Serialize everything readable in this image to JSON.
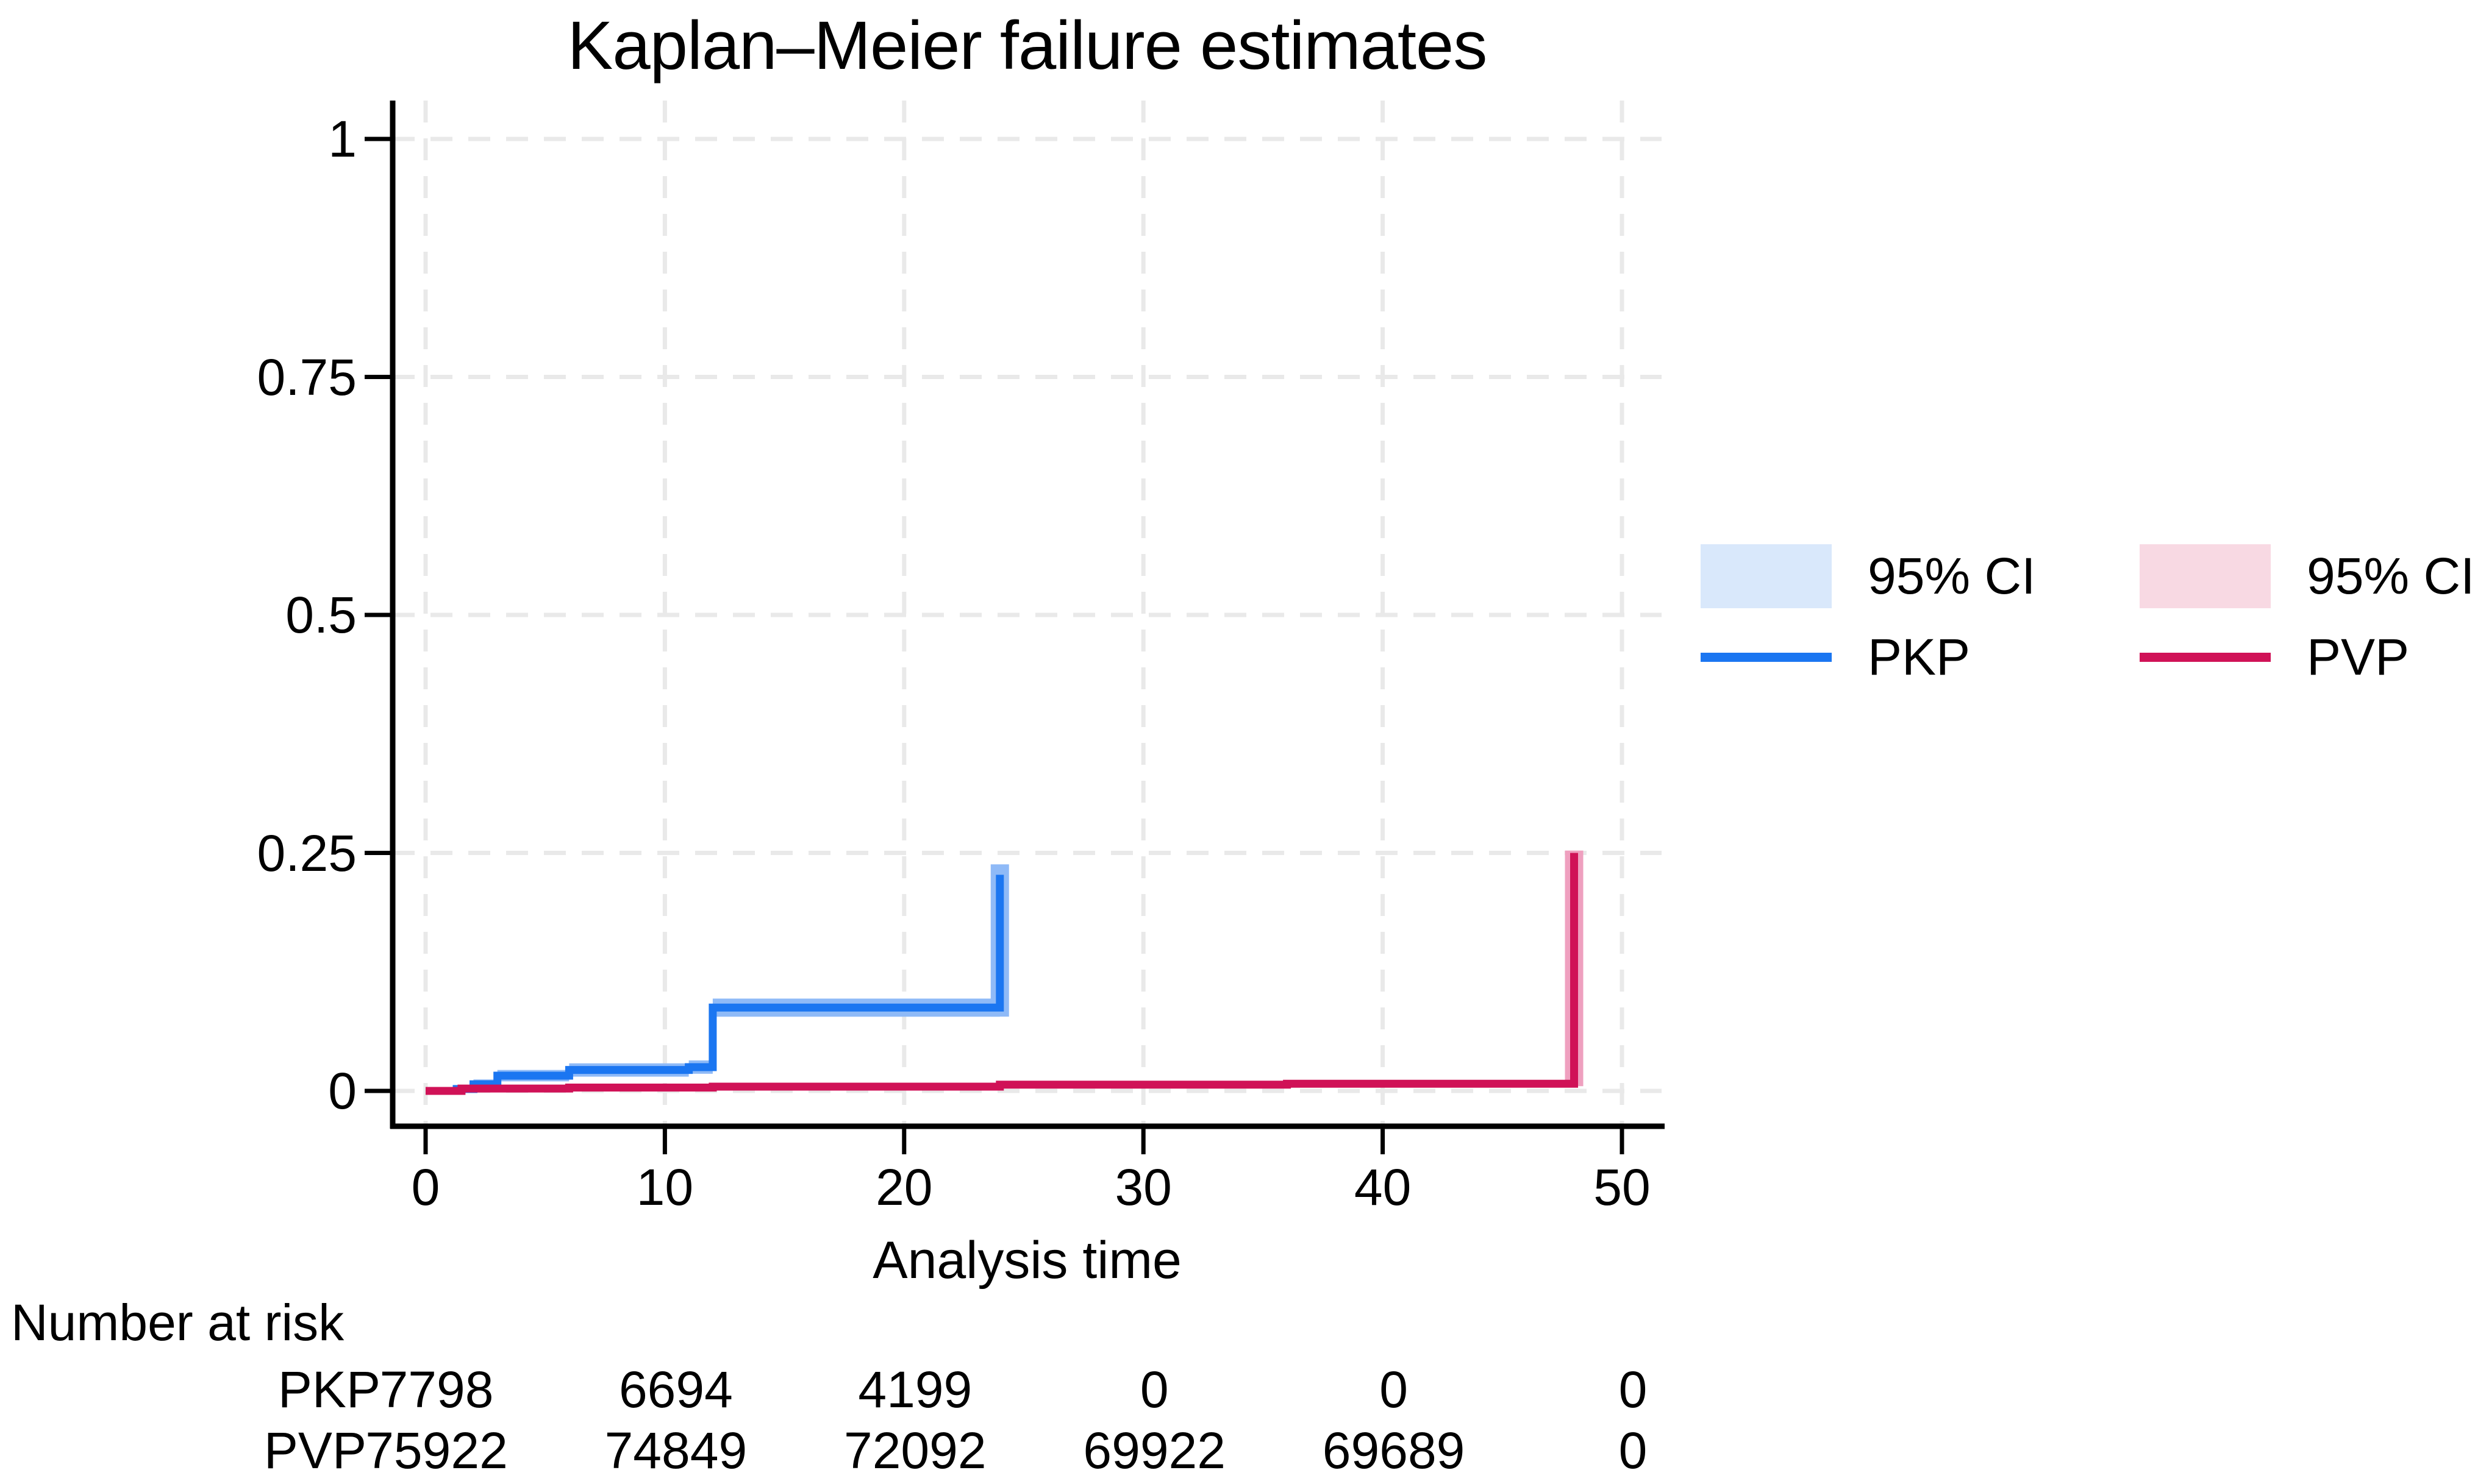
{
  "chart_data": {
    "type": "line",
    "subtype": "kaplan-meier-step",
    "title": "Kaplan–Meier failure estimates",
    "xlabel": "Analysis time",
    "ylabel": "",
    "xlim": [
      0,
      51.7
    ],
    "ylim": [
      0,
      1.04
    ],
    "grid": true,
    "x_ticks": [
      0,
      10,
      20,
      30,
      40,
      50
    ],
    "x_tick_labels": [
      "0",
      "10",
      "20",
      "30",
      "40",
      "50"
    ],
    "y_ticks": [
      0,
      0.25,
      0.5,
      0.75,
      1
    ],
    "y_tick_labels": [
      "0",
      "0.25",
      "0.5",
      "0.75",
      "1"
    ],
    "grid_color": "#e9e9e9",
    "axis_color": "#000000",
    "series": [
      {
        "name": "PKP",
        "color": "#1b76f1",
        "band_color": "#8fbaf7",
        "steps": [
          [
            0,
            0
          ],
          [
            1.3,
            0.002
          ],
          [
            2,
            0.007
          ],
          [
            3,
            0.016
          ],
          [
            6,
            0.022
          ],
          [
            11,
            0.025
          ],
          [
            12,
            0.0875
          ]
        ],
        "end": [
          24,
          0.227
        ],
        "ci": [
          [
            0,
            0,
            0.0015
          ],
          [
            1.3,
            0,
            0.006
          ],
          [
            2,
            0.002,
            0.012
          ],
          [
            3,
            0.01,
            0.022
          ],
          [
            6,
            0.015,
            0.029
          ],
          [
            11,
            0.018,
            0.032
          ],
          [
            12,
            0.078,
            0.097
          ]
        ],
        "ci_cap": 0.238
      },
      {
        "name": "PVP",
        "color": "#d01257",
        "band_color": "#efa0bf",
        "steps": [
          [
            0,
            0
          ],
          [
            1.5,
            0.0025
          ],
          [
            6,
            0.0035
          ],
          [
            12,
            0.0045
          ],
          [
            24,
            0.0065
          ],
          [
            36,
            0.0075
          ]
        ],
        "end": [
          48,
          0.25
        ],
        "ci": [
          [
            0,
            0,
            0.002
          ],
          [
            1.5,
            0.001,
            0.005
          ],
          [
            6,
            0.002,
            0.006
          ],
          [
            12,
            0.003,
            0.007
          ],
          [
            24,
            0.004,
            0.009
          ],
          [
            36,
            0.005,
            0.01
          ]
        ],
        "ci_cap": 0.2525
      }
    ]
  },
  "legend": {
    "items": [
      {
        "type": "ci",
        "label": "95% CI",
        "color": "#d9e8fb",
        "series": "PKP"
      },
      {
        "type": "ci",
        "label": "95% CI",
        "color": "#f8d9e3",
        "series": "PVP"
      },
      {
        "type": "line",
        "label": "PKP",
        "color": "#1b76f1",
        "series": "PKP"
      },
      {
        "type": "line",
        "label": "PVP",
        "color": "#d01257",
        "series": "PVP"
      }
    ]
  },
  "risk_table": {
    "title": "Number at risk",
    "times": [
      0,
      10,
      20,
      30,
      40,
      50
    ],
    "rows": [
      {
        "label": "PKP",
        "values": [
          "7798",
          "6694",
          "4199",
          "0",
          "0",
          "0"
        ]
      },
      {
        "label": "PVP",
        "values": [
          "75922",
          "74849",
          "72092",
          "69922",
          "69689",
          "0"
        ]
      }
    ]
  }
}
